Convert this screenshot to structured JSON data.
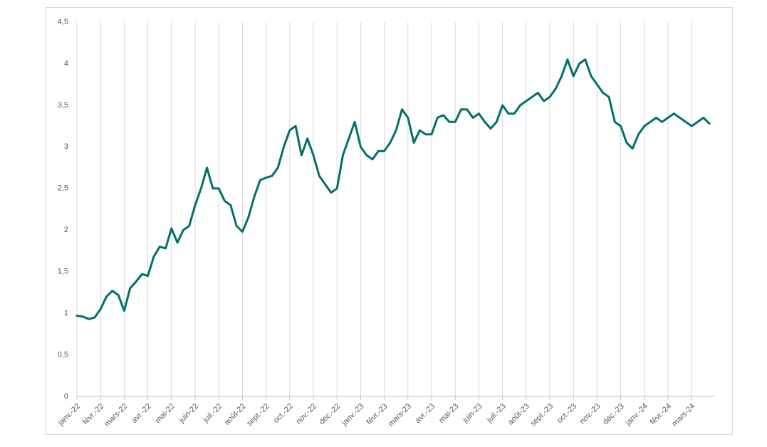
{
  "chart_data": {
    "type": "line",
    "categories": [
      "janv.-22",
      null,
      null,
      null,
      "févr.-22",
      null,
      null,
      null,
      "mars-22",
      null,
      null,
      null,
      "avr.-22",
      null,
      null,
      null,
      "mai-22",
      null,
      null,
      null,
      "juin-22",
      null,
      null,
      null,
      "juil.-22",
      null,
      null,
      null,
      "août-22",
      null,
      null,
      null,
      "sept.-22",
      null,
      null,
      null,
      "oct.-22",
      null,
      null,
      null,
      "nov.-22",
      null,
      null,
      null,
      "déc.-22",
      null,
      null,
      null,
      "janv.-23",
      null,
      null,
      null,
      "févr.-23",
      null,
      null,
      null,
      "mars-23",
      null,
      null,
      null,
      "avr.-23",
      null,
      null,
      null,
      "mai-23",
      null,
      null,
      null,
      "juin-23",
      null,
      null,
      null,
      "juil.-23",
      null,
      null,
      null,
      "août-23",
      null,
      null,
      null,
      "sept.-23",
      null,
      null,
      null,
      "oct.-23",
      null,
      null,
      null,
      "nov.-23",
      null,
      null,
      null,
      "déc.-23",
      null,
      null,
      null,
      "janv.-24",
      null,
      null,
      null,
      "févr.-24",
      null,
      null,
      null,
      "mars-24",
      null,
      null,
      null
    ],
    "values": [
      0.97,
      0.96,
      0.93,
      0.95,
      1.05,
      1.2,
      1.27,
      1.22,
      1.03,
      1.3,
      1.38,
      1.47,
      1.45,
      1.68,
      1.8,
      1.78,
      2.02,
      1.85,
      2.0,
      2.05,
      2.3,
      2.5,
      2.75,
      2.5,
      2.5,
      2.35,
      2.3,
      2.05,
      1.98,
      2.15,
      2.4,
      2.6,
      2.63,
      2.65,
      2.75,
      3.0,
      3.2,
      3.25,
      2.9,
      3.1,
      2.9,
      2.65,
      2.55,
      2.45,
      2.5,
      2.9,
      3.1,
      3.3,
      3.0,
      2.9,
      2.85,
      2.95,
      2.95,
      3.05,
      3.2,
      3.45,
      3.35,
      3.05,
      3.2,
      3.15,
      3.15,
      3.35,
      3.38,
      3.3,
      3.3,
      3.45,
      3.45,
      3.35,
      3.4,
      3.3,
      3.22,
      3.3,
      3.5,
      3.4,
      3.4,
      3.5,
      3.55,
      3.6,
      3.65,
      3.55,
      3.6,
      3.7,
      3.85,
      4.05,
      3.85,
      4.0,
      4.05,
      3.85,
      3.75,
      3.65,
      3.6,
      3.3,
      3.25,
      3.05,
      2.98,
      3.15,
      3.25,
      3.3,
      3.35,
      3.3,
      3.35,
      3.4,
      3.35,
      3.3,
      3.25,
      3.3,
      3.35,
      3.28
    ],
    "color": "#00706b",
    "ylim": [
      0,
      4.5
    ],
    "yticks": [
      0,
      {
        "value": 0.5,
        "label": "0,5"
      },
      1,
      {
        "value": 1.5,
        "label": "1,5"
      },
      2,
      {
        "value": 2.5,
        "label": "2,5"
      },
      3,
      {
        "value": 3.5,
        "label": "3,5"
      },
      4,
      {
        "value": 4.5,
        "label": "4,5"
      }
    ],
    "grid": true
  }
}
